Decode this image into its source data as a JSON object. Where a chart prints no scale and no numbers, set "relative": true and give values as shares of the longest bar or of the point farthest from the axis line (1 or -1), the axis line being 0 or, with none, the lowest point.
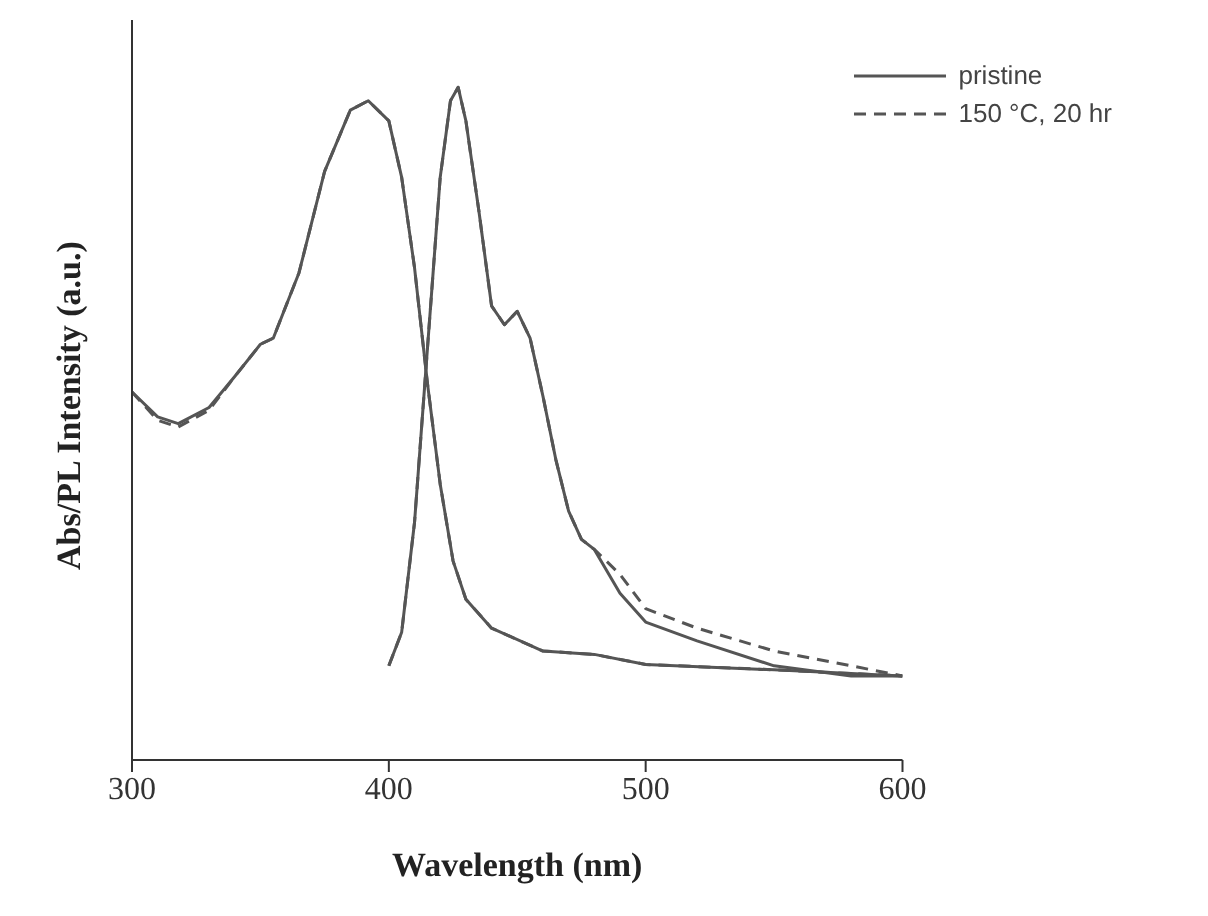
{
  "chart_data": {
    "type": "line",
    "relative": true,
    "xlabel": "Wavelength (nm)",
    "ylabel": "Abs/PL Intensity (a.u.)",
    "xlim": [
      300,
      600
    ],
    "xticks": [
      300,
      400,
      500,
      600
    ],
    "legend": "top right",
    "grid": false,
    "marker": "none",
    "series": [
      {
        "name": "pristine",
        "color": "#555555",
        "line_style": "solid",
        "x": [
          300,
          310,
          318,
          330,
          340,
          350,
          355,
          365,
          375,
          385,
          392,
          400,
          405,
          410,
          415,
          420,
          425,
          430,
          440,
          460,
          480,
          500,
          550,
          600
        ],
        "values": [
          0.547,
          0.51,
          0.5,
          0.524,
          0.57,
          0.618,
          0.627,
          0.724,
          0.875,
          0.966,
          0.98,
          0.95,
          0.866,
          0.732,
          0.561,
          0.41,
          0.296,
          0.239,
          0.196,
          0.162,
          0.157,
          0.142,
          0.134,
          0.125
        ]
      },
      {
        "name": "150 °C, 20 hr",
        "color": "#555555",
        "line_style": "dashed",
        "x": [
          300,
          310,
          318,
          330,
          340,
          350,
          355,
          365,
          375,
          385,
          392,
          400,
          405,
          410,
          415,
          420,
          425,
          430,
          440,
          460,
          480,
          500,
          550,
          600
        ],
        "values": [
          0.547,
          0.505,
          0.495,
          0.52,
          0.57,
          0.618,
          0.627,
          0.724,
          0.875,
          0.966,
          0.98,
          0.95,
          0.866,
          0.732,
          0.561,
          0.41,
          0.296,
          0.239,
          0.196,
          0.162,
          0.157,
          0.142,
          0.134,
          0.125
        ]
      },
      {
        "color": "#555555",
        "line_style": "solid",
        "x": [
          400,
          405,
          410,
          415,
          420,
          424,
          427,
          430,
          435,
          440,
          445,
          450,
          455,
          460,
          465,
          470,
          475,
          480,
          490,
          500,
          520,
          550,
          580,
          600
        ],
        "values": [
          0.14,
          0.19,
          0.353,
          0.61,
          0.866,
          0.98,
          1,
          0.95,
          0.818,
          0.675,
          0.647,
          0.667,
          0.627,
          0.541,
          0.447,
          0.37,
          0.328,
          0.313,
          0.248,
          0.205,
          0.177,
          0.14,
          0.125,
          0.125
        ]
      },
      {
        "color": "#555555",
        "line_style": "dashed",
        "x": [
          400,
          405,
          410,
          415,
          420,
          424,
          427,
          430,
          435,
          440,
          445,
          450,
          455,
          460,
          465,
          470,
          475,
          480,
          490,
          500,
          520,
          550,
          580,
          600
        ],
        "values": [
          0.14,
          0.19,
          0.353,
          0.61,
          0.866,
          0.98,
          1,
          0.95,
          0.818,
          0.675,
          0.647,
          0.667,
          0.627,
          0.541,
          0.447,
          0.37,
          0.328,
          0.313,
          0.276,
          0.225,
          0.196,
          0.162,
          0.14,
          0.125
        ]
      }
    ]
  }
}
